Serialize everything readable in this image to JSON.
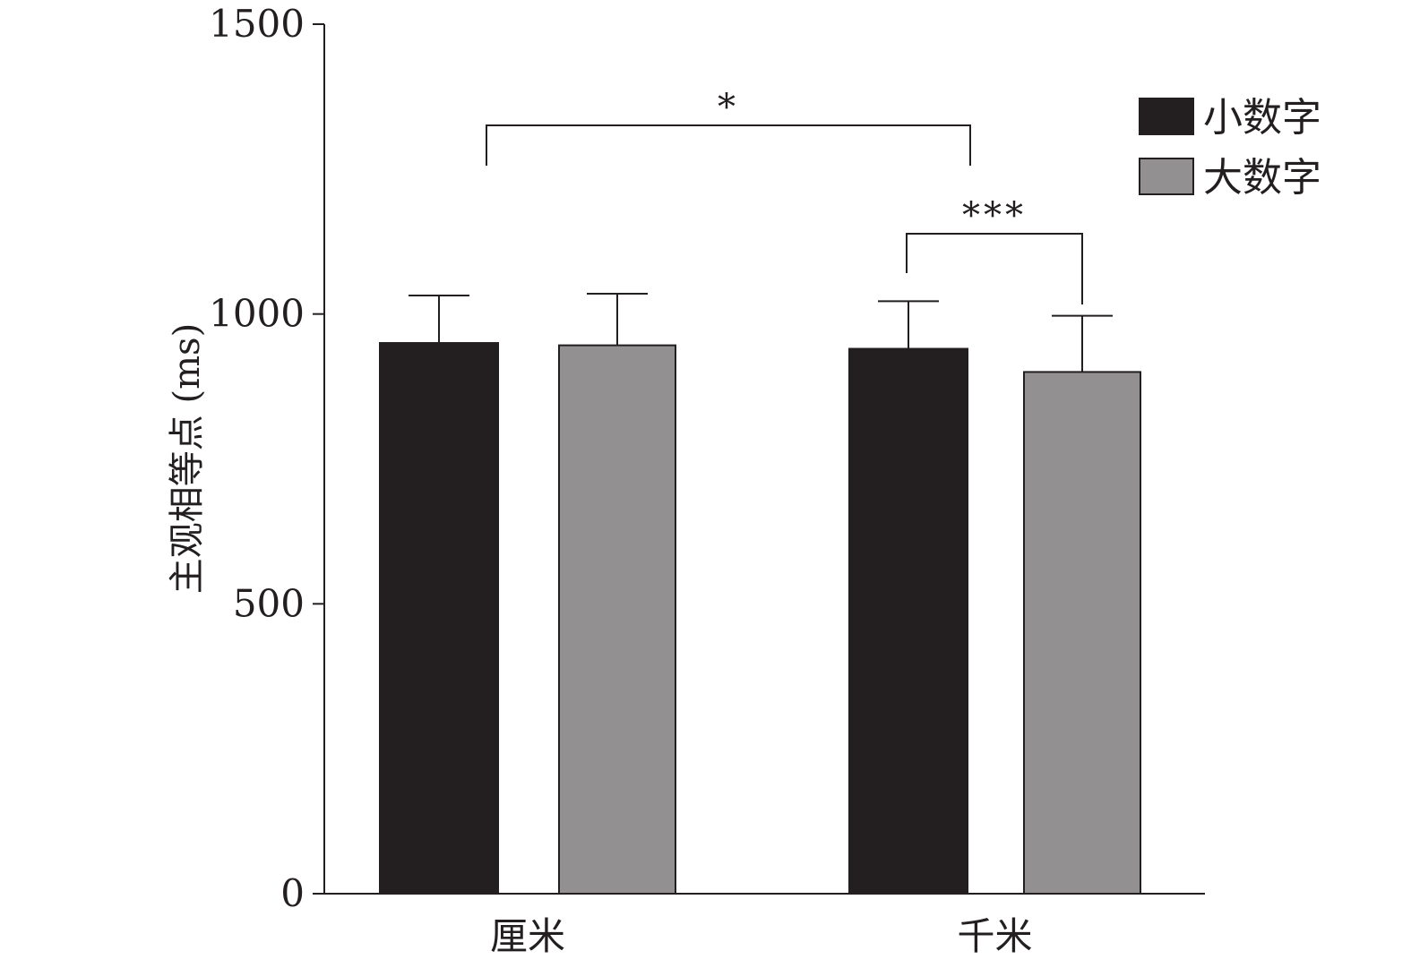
{
  "chart_data": {
    "type": "bar",
    "title": "",
    "xlabel": "",
    "ylabel": "主观相等点 (ms)",
    "ylim": [
      0,
      1500
    ],
    "yticks": [
      "0",
      "500",
      "1000",
      "1500"
    ],
    "categories": [
      "厘米",
      "千米"
    ],
    "series": [
      {
        "name": "小数字",
        "color": "#231f20",
        "values": [
          950,
          940
        ],
        "error_upper": [
          1032,
          1022
        ]
      },
      {
        "name": "大数字",
        "color": "#929091",
        "values": [
          946,
          900
        ],
        "error_upper": [
          1035,
          997
        ]
      }
    ],
    "legend_position": "top-right",
    "grid": false,
    "annotations": [
      {
        "label": "*",
        "from": "厘米 小数字",
        "to": "千米 小数字"
      },
      {
        "label": "***",
        "from": "千米 小数字",
        "to": "千米 大数字"
      }
    ]
  }
}
